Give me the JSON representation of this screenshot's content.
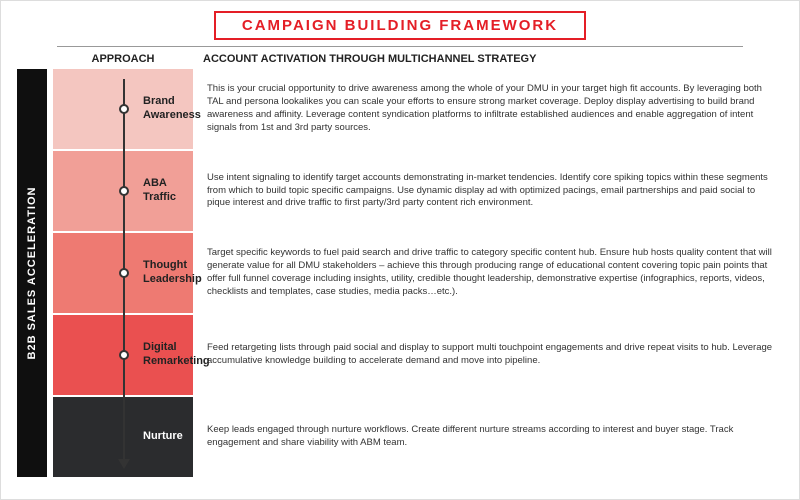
{
  "title": "CAMPAIGN BUILDING FRAMEWORK",
  "colors": {
    "accent": "#e41e26",
    "sidebar": "#0f0f0f",
    "timeline": "#333333",
    "row_bgs": [
      "#f4c6c0",
      "#f19f97",
      "#ee7a72",
      "#ea5050",
      "#2b2c2e"
    ]
  },
  "sidebar_label": "B2B SALES ACCELERATION",
  "headers": {
    "approach": "APPROACH",
    "activation": "ACCOUNT ACTIVATION THROUGH MULTICHANNEL STRATEGY"
  },
  "rows": [
    {
      "label": "Brand Awareness",
      "desc": "This is your crucial opportunity to drive awareness among the whole of your DMU in your target high fit accounts. By leveraging both TAL and persona lookalikes you can scale your efforts to ensure strong market coverage. Deploy display advertising to build brand awareness and affinity. Leverage content syndication platforms to infiltrate established audiences and enable aggregation of intent signals from 1st and 3rd party sources."
    },
    {
      "label": "ABA Traffic",
      "desc": "Use intent signaling to identify target accounts demonstrating in-market tendencies. Identify core spiking topics within these segments from which to build topic specific campaigns. Use dynamic display ad with optimized pacings, email partnerships and paid social  to pique interest and drive traffic to first party/3rd party content rich environment."
    },
    {
      "label": "Thought Leadership",
      "desc": "Target specific keywords to fuel paid search and drive traffic to category specific content hub. Ensure hub hosts quality content that will generate value for all DMU stakeholders – achieve this through producing range of educational content covering topic pain points that offer full funnel coverage including insights, utility, credible thought leadership, demonstrative expertise (infographics, reports, videos, checklists and templates, case studies, media packs…etc.)."
    },
    {
      "label": "Digital Remarketing",
      "desc": "Feed retargeting lists through paid social and display to support multi touchpoint engagements and drive repeat visits to hub. Leverage accumulative knowledge building to accelerate demand and move into pipeline."
    },
    {
      "label": "Nurture",
      "desc": "Keep leads engaged through nurture workflows. Create different nurture streams according to interest and buyer stage. Track engagement and share viability with ABM team."
    }
  ]
}
